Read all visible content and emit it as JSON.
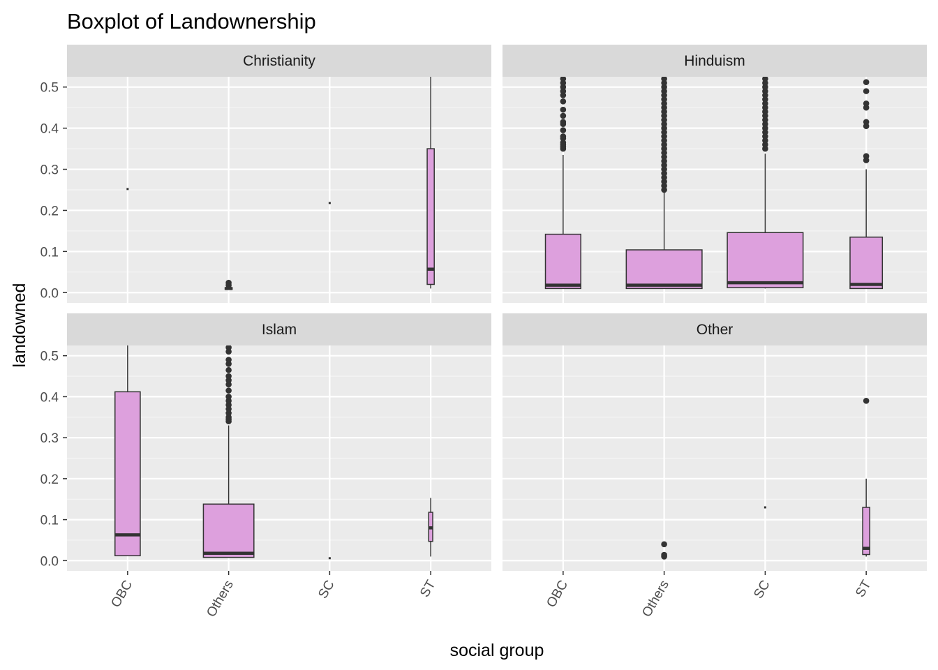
{
  "chart_data": {
    "type": "boxplot",
    "title": "Boxplot of Landownership",
    "xlabel": "social group",
    "ylabel": "landowned",
    "ylim": [
      -0.025,
      0.525
    ],
    "y_ticks": [
      "0.0",
      "0.1",
      "0.2",
      "0.3",
      "0.4",
      "0.5"
    ],
    "y_tick_values": [
      0,
      0.1,
      0.2,
      0.3,
      0.4,
      0.5
    ],
    "categories": [
      "OBC",
      "Others",
      "SC",
      "ST"
    ],
    "grid": true,
    "colors": {
      "box_fill": "#dda0dd",
      "box_line": "#333333",
      "panel_bg": "#ebebeb",
      "strip_bg": "#d9d9d9",
      "grid_major": "#ffffff",
      "outlier": "#333333"
    },
    "panels": [
      {
        "facet": "Christianity",
        "boxes": [
          {
            "group": "OBC",
            "single_value": 0.252
          },
          {
            "group": "Others",
            "q1": 0.008,
            "median": 0.01,
            "q3": 0.012,
            "whisker_low": 0.008,
            "whisker_high": 0.012,
            "outliers": [
              0.018,
              0.024
            ],
            "width": 0.07
          },
          {
            "group": "SC",
            "single_value": 0.218
          },
          {
            "group": "ST",
            "q1": 0.02,
            "median": 0.057,
            "q3": 0.35,
            "whisker_low": 0.01,
            "whisker_high": 0.55,
            "outliers": [],
            "width": 0.07
          }
        ]
      },
      {
        "facet": "Hinduism",
        "boxes": [
          {
            "group": "OBC",
            "q1": 0.01,
            "median": 0.018,
            "q3": 0.142,
            "whisker_low": 0.01,
            "whisker_high": 0.335,
            "outliers": [
              0.35,
              0.355,
              0.36,
              0.365,
              0.375,
              0.38,
              0.395,
              0.41,
              0.415,
              0.43,
              0.445,
              0.465,
              0.48,
              0.49,
              0.5,
              0.51,
              0.52,
              0.53
            ],
            "width": 0.35
          },
          {
            "group": "Others",
            "q1": 0.01,
            "median": 0.018,
            "q3": 0.104,
            "whisker_low": 0.01,
            "whisker_high": 0.245,
            "outliers": [
              0.25,
              0.26,
              0.27,
              0.28,
              0.29,
              0.3,
              0.31,
              0.32,
              0.33,
              0.34,
              0.35,
              0.36,
              0.37,
              0.38,
              0.39,
              0.4,
              0.41,
              0.42,
              0.43,
              0.44,
              0.45,
              0.46,
              0.47,
              0.48,
              0.49,
              0.5,
              0.51,
              0.52,
              0.53
            ],
            "width": 0.75
          },
          {
            "group": "SC",
            "q1": 0.012,
            "median": 0.024,
            "q3": 0.146,
            "whisker_low": 0.01,
            "whisker_high": 0.338,
            "outliers": [
              0.35,
              0.36,
              0.37,
              0.38,
              0.39,
              0.4,
              0.41,
              0.42,
              0.43,
              0.44,
              0.45,
              0.46,
              0.47,
              0.48,
              0.49,
              0.5,
              0.51,
              0.52,
              0.53
            ],
            "width": 0.75
          },
          {
            "group": "ST",
            "q1": 0.01,
            "median": 0.02,
            "q3": 0.135,
            "whisker_low": 0.01,
            "whisker_high": 0.3,
            "outliers": [
              0.322,
              0.332,
              0.405,
              0.415,
              0.45,
              0.46,
              0.49,
              0.512
            ],
            "width": 0.32
          }
        ]
      },
      {
        "facet": "Islam",
        "boxes": [
          {
            "group": "OBC",
            "q1": 0.012,
            "median": 0.063,
            "q3": 0.412,
            "whisker_low": 0.012,
            "whisker_high": 0.55,
            "outliers": [],
            "width": 0.25
          },
          {
            "group": "Others",
            "q1": 0.008,
            "median": 0.018,
            "q3": 0.138,
            "whisker_low": 0.008,
            "whisker_high": 0.33,
            "outliers": [
              0.34,
              0.345,
              0.35,
              0.36,
              0.37,
              0.38,
              0.39,
              0.4,
              0.415,
              0.43,
              0.44,
              0.45,
              0.465,
              0.48,
              0.49,
              0.51,
              0.52
            ],
            "width": 0.5
          },
          {
            "group": "SC",
            "single_value": 0.006
          },
          {
            "group": "ST",
            "q1": 0.047,
            "median": 0.08,
            "q3": 0.118,
            "whisker_low": 0.01,
            "whisker_high": 0.153,
            "outliers": [],
            "width": 0.04
          }
        ]
      },
      {
        "facet": "Other",
        "boxes": [
          {
            "group": "Others",
            "q1": 0.01,
            "median": 0.014,
            "q3": 0.018,
            "whisker_low": 0.01,
            "whisker_high": 0.018,
            "outliers": [
              0.01,
              0.014,
              0.04
            ],
            "width": 0.04
          },
          {
            "group": "SC",
            "single_value": 0.13
          },
          {
            "group": "ST",
            "q1": 0.015,
            "median": 0.03,
            "q3": 0.13,
            "whisker_low": 0.01,
            "whisker_high": 0.2,
            "outliers": [
              0.39
            ],
            "width": 0.07
          }
        ]
      }
    ]
  }
}
